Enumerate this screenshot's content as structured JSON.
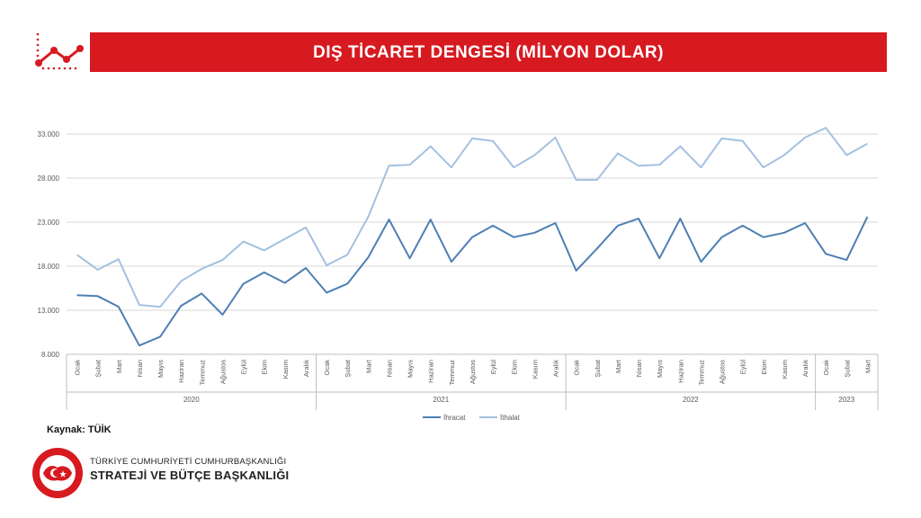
{
  "header": {
    "title": "DIŞ TİCARET DENGESİ (MİLYON DOLAR)"
  },
  "source": "Kaynak: TÜİK",
  "org": {
    "line1": "TÜRKİYE CUMHURİYETİ CUMHURBAŞKANLIĞI",
    "line2": "STRATEJİ VE BÜTÇE BAŞKANLIĞI"
  },
  "colors": {
    "brand_red": "#d71920",
    "export_line": "#4d7fb3",
    "import_line": "#a3c1e0"
  },
  "chart_data": {
    "type": "line",
    "title": "DIŞ TİCARET DENGESİ (MİLYON DOLAR)",
    "yticks": [
      "8.000",
      "13.000",
      "18.000",
      "23.000",
      "28.000",
      "33.000"
    ],
    "ylim": [
      8000,
      33000
    ],
    "grid": true,
    "legend_position": "bottom-center",
    "months": [
      "Ocak",
      "Şubat",
      "Mart",
      "Nisan",
      "Mayıs",
      "Haziran",
      "Temmuz",
      "Ağustos",
      "Eylül",
      "Ekim",
      "Kasım",
      "Aralık",
      "Ocak",
      "Şubat",
      "Mart",
      "Nisan",
      "Mayıs",
      "Haziran",
      "Temmuz",
      "Ağustos",
      "Eylül",
      "Ekim",
      "Kasım",
      "Aralık",
      "Ocak",
      "Şubat",
      "Mart",
      "Nisan",
      "Mayıs",
      "Haziran",
      "Temmuz",
      "Ağustos",
      "Eylül",
      "Ekim",
      "Kasım",
      "Aralık",
      "Ocak",
      "Şubat",
      "Mart"
    ],
    "years": [
      {
        "label": "2020",
        "count": 12
      },
      {
        "label": "2021",
        "count": 12
      },
      {
        "label": "2022",
        "count": 12
      },
      {
        "label": "2023",
        "count": 3
      }
    ],
    "series": [
      {
        "name": "İhracat",
        "color": "#4d7fb3",
        "values": [
          14700,
          14600,
          13400,
          9000,
          10000,
          13500,
          14900,
          12500,
          16000,
          17300,
          16100,
          17800,
          15000,
          16000,
          19000,
          23300,
          18900,
          23300,
          18500,
          21300,
          22600,
          21300,
          21800,
          22900,
          17500,
          20000,
          22600,
          23400,
          18900,
          23400,
          18500,
          21300,
          22600,
          21300,
          21800,
          22900,
          19400,
          18700,
          23600
        ]
      },
      {
        "name": "İthalat",
        "color": "#a3c1e0",
        "values": [
          19300,
          17600,
          18800,
          13600,
          13400,
          16300,
          17700,
          18700,
          20800,
          19800,
          21100,
          22400,
          18100,
          19300,
          23600,
          29400,
          29500,
          31600,
          29200,
          32500,
          32200,
          29200,
          30600,
          32600,
          27800,
          27800,
          30800,
          29400,
          29500,
          31600,
          29200,
          32500,
          32200,
          29200,
          30600,
          32600,
          33700,
          30600,
          31900
        ]
      }
    ]
  }
}
